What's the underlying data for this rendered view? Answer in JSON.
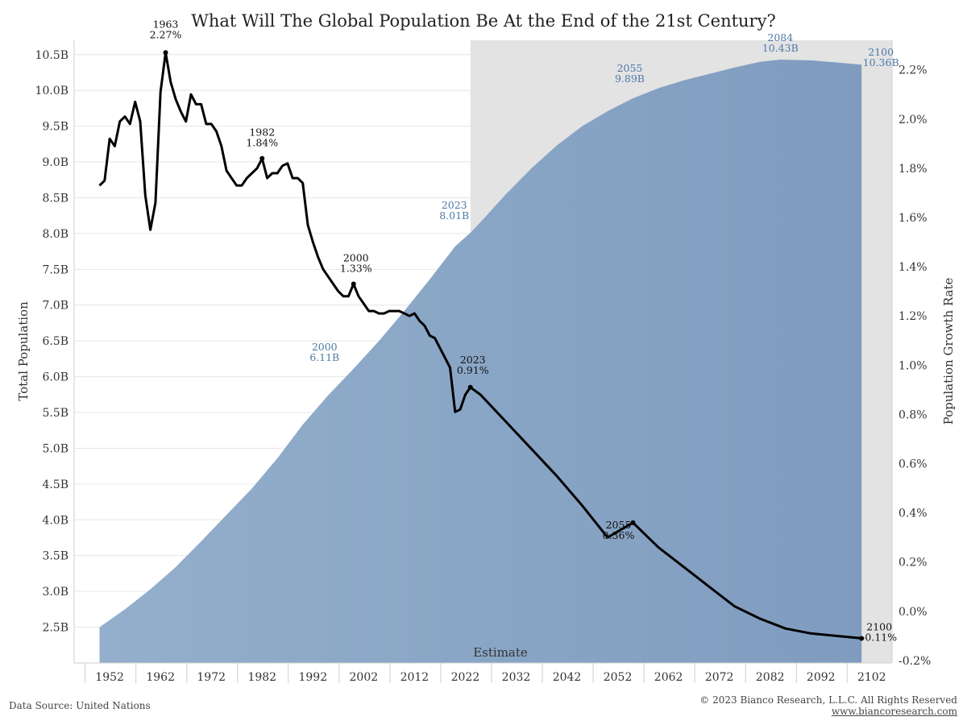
{
  "colors": {
    "area": "#8aa6c5",
    "estimate_band": "#e3e3e3",
    "line": "#000000",
    "pop_label": "#4e79a7"
  },
  "footer": {
    "source": "Data Source: United Nations",
    "copyright": "© 2023 Bianco Research, L.L.C. All Rights Reserved",
    "website": "www.biancoresearch.com"
  },
  "chart_data": {
    "type": "area",
    "title": "What Will The Global Population Be At the End of the 21st Century?",
    "ylabel": "Total Population",
    "y2label": "Population Growth Rate",
    "band_label": "Estimate",
    "estimate_start": 2023,
    "grid": true,
    "xlim": [
      1945,
      2106
    ],
    "ylim": [
      2.0,
      10.7
    ],
    "y2lim": [
      -0.21,
      2.32
    ],
    "xticks": [
      1952,
      1962,
      1972,
      1982,
      1992,
      2002,
      2012,
      2022,
      2032,
      2042,
      2052,
      2062,
      2072,
      2082,
      2092,
      2102
    ],
    "yticks": [
      2.5,
      3.0,
      3.5,
      4.0,
      4.5,
      5.0,
      5.5,
      6.0,
      6.5,
      7.0,
      7.5,
      8.0,
      8.5,
      9.0,
      9.5,
      10.0,
      10.5
    ],
    "ytick_labels": [
      "2.5B",
      "3.0B",
      "3.5B",
      "4.0B",
      "4.5B",
      "5.0B",
      "5.5B",
      "6.0B",
      "6.5B",
      "7.0B",
      "7.5B",
      "8.0B",
      "8.5B",
      "9.0B",
      "9.5B",
      "10.0B",
      "10.5B"
    ],
    "y2ticks": [
      -0.2,
      0.0,
      0.2,
      0.4,
      0.6,
      0.8,
      1.0,
      1.2,
      1.4,
      1.6,
      1.8,
      2.0,
      2.2
    ],
    "y2tick_labels": [
      "-0.2%",
      "0.0%",
      "0.2%",
      "0.4%",
      "0.6%",
      "0.8%",
      "1.0%",
      "1.2%",
      "1.4%",
      "1.6%",
      "1.8%",
      "2.0%",
      "2.2%"
    ],
    "series": [
      {
        "axis": "left",
        "x": [
          1950,
          1955,
          1960,
          1965,
          1970,
          1975,
          1980,
          1985,
          1990,
          1995,
          2000,
          2005,
          2010,
          2015,
          2020,
          2023,
          2025,
          2030,
          2035,
          2040,
          2045,
          2050,
          2055,
          2060,
          2065,
          2070,
          2075,
          2080,
          2084,
          2090,
          2095,
          2100
        ],
        "values": [
          2.5,
          2.75,
          3.03,
          3.34,
          3.7,
          4.07,
          4.44,
          4.86,
          5.33,
          5.74,
          6.11,
          6.5,
          6.92,
          7.36,
          7.82,
          8.01,
          8.16,
          8.55,
          8.91,
          9.23,
          9.5,
          9.71,
          9.89,
          10.03,
          10.14,
          10.23,
          10.32,
          10.4,
          10.43,
          10.42,
          10.39,
          10.36
        ]
      },
      {
        "axis": "right",
        "x": [
          1950,
          1951,
          1952,
          1953,
          1954,
          1955,
          1956,
          1957,
          1958,
          1959,
          1960,
          1961,
          1962,
          1963,
          1964,
          1965,
          1966,
          1967,
          1968,
          1969,
          1970,
          1971,
          1972,
          1973,
          1974,
          1975,
          1976,
          1977,
          1978,
          1979,
          1980,
          1981,
          1982,
          1983,
          1984,
          1985,
          1986,
          1987,
          1988,
          1989,
          1990,
          1991,
          1992,
          1993,
          1994,
          1995,
          1996,
          1997,
          1998,
          1999,
          2000,
          2001,
          2002,
          2003,
          2004,
          2005,
          2006,
          2007,
          2008,
          2009,
          2010,
          2011,
          2012,
          2013,
          2014,
          2015,
          2016,
          2017,
          2018,
          2019,
          2020,
          2021,
          2022,
          2023,
          2025,
          2030,
          2035,
          2040,
          2045,
          2050,
          2055,
          2060,
          2065,
          2070,
          2075,
          2080,
          2085,
          2090,
          2095,
          2100
        ],
        "values": [
          1.73,
          1.75,
          1.92,
          1.89,
          1.99,
          2.01,
          1.98,
          2.07,
          1.99,
          1.69,
          1.55,
          1.66,
          2.11,
          2.27,
          2.15,
          2.08,
          2.03,
          1.99,
          2.1,
          2.06,
          2.06,
          1.98,
          1.98,
          1.95,
          1.89,
          1.79,
          1.76,
          1.73,
          1.73,
          1.76,
          1.78,
          1.8,
          1.84,
          1.76,
          1.78,
          1.78,
          1.81,
          1.82,
          1.76,
          1.76,
          1.74,
          1.57,
          1.5,
          1.44,
          1.39,
          1.36,
          1.33,
          1.3,
          1.28,
          1.28,
          1.33,
          1.28,
          1.25,
          1.22,
          1.22,
          1.21,
          1.21,
          1.22,
          1.22,
          1.22,
          1.21,
          1.2,
          1.21,
          1.18,
          1.16,
          1.12,
          1.11,
          1.07,
          1.03,
          0.99,
          0.81,
          0.82,
          0.88,
          0.91,
          0.88,
          0.77,
          0.66,
          0.55,
          0.43,
          0.3,
          0.36,
          0.26,
          0.18,
          0.1,
          0.02,
          -0.03,
          -0.07,
          -0.09,
          -0.1,
          -0.11
        ]
      }
    ],
    "annotations": [
      {
        "axis": "left",
        "x": 2000,
        "y": 6.11,
        "year": "2000",
        "value": "6.11B"
      },
      {
        "axis": "left",
        "x": 2023,
        "y": 8.01,
        "year": "2023",
        "value": "8.01B"
      },
      {
        "axis": "left",
        "x": 2055,
        "y": 9.89,
        "year": "2055",
        "value": "9.89B"
      },
      {
        "axis": "left",
        "x": 2084,
        "y": 10.43,
        "year": "2084",
        "value": "10.43B"
      },
      {
        "axis": "left",
        "x": 2100,
        "y": 10.36,
        "year": "2100",
        "value": "10.36B"
      },
      {
        "axis": "right",
        "x": 1963,
        "y": 2.27,
        "year": "1963",
        "value": "2.27%"
      },
      {
        "axis": "right",
        "x": 1982,
        "y": 1.84,
        "year": "1982",
        "value": "1.84%"
      },
      {
        "axis": "right",
        "x": 2000,
        "y": 1.33,
        "year": "2000",
        "value": "1.33%"
      },
      {
        "axis": "right",
        "x": 2023,
        "y": 0.91,
        "year": "2023",
        "value": "0.91%"
      },
      {
        "axis": "right",
        "x": 2055,
        "y": 0.36,
        "year": "2055",
        "value": "0.36%"
      },
      {
        "axis": "right",
        "x": 2100,
        "y": -0.11,
        "year": "2100",
        "value": "-0.11%"
      }
    ]
  }
}
